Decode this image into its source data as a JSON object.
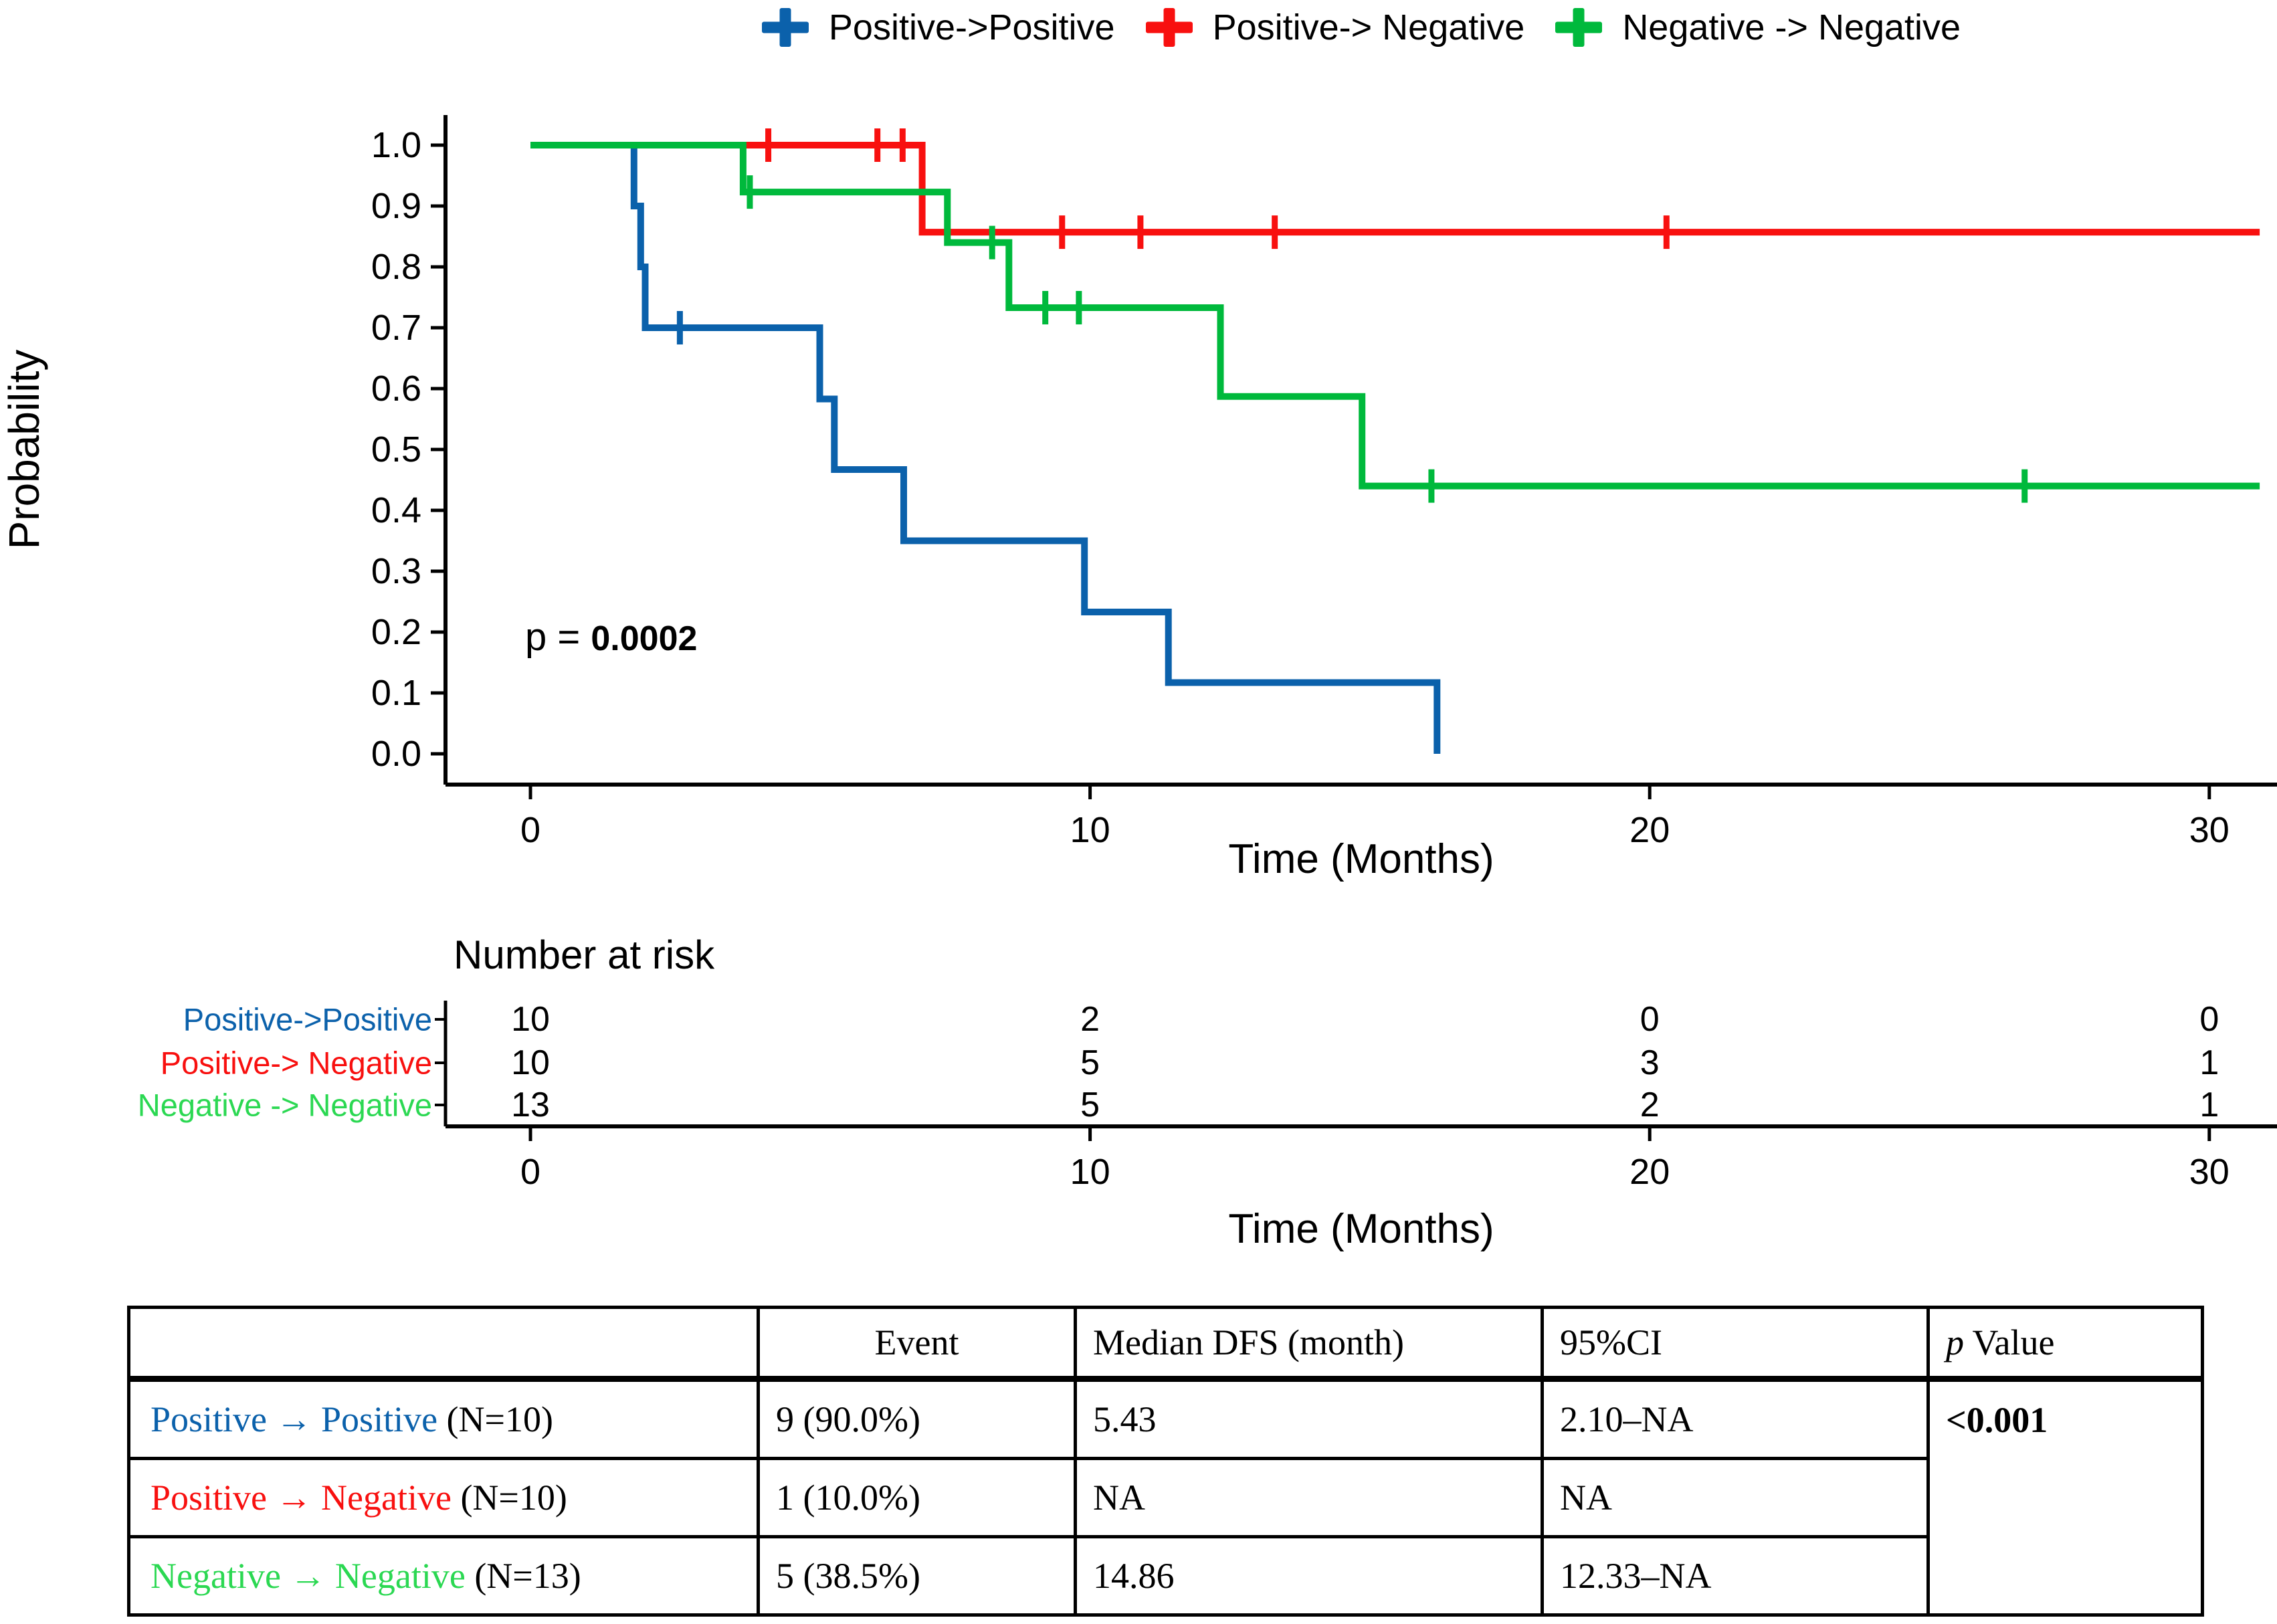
{
  "colors": {
    "blue": "#0B61AB",
    "red": "#F8100F",
    "green_line": "#00B93C",
    "green_text": "#2BD852",
    "axis": "#000000"
  },
  "legend": {
    "items": [
      {
        "label": "Positive->Positive",
        "color": "#0B61AB"
      },
      {
        "label": "Positive-> Negative",
        "color": "#F8100F"
      },
      {
        "label": "Negative -> Negative",
        "color": "#00B93C"
      }
    ]
  },
  "chart_data": {
    "type": "line",
    "subtype": "kaplan-meier-step",
    "title": "",
    "xlabel": "Time (Months)",
    "ylabel": "Probability",
    "xlim": [
      0,
      31.2
    ],
    "ylim": [
      0.0,
      1.0
    ],
    "x_ticks": [
      0,
      10,
      20,
      30
    ],
    "y_ticks": [
      0.0,
      0.1,
      0.2,
      0.3,
      0.4,
      0.5,
      0.6,
      0.7,
      0.8,
      0.9,
      1.0
    ],
    "grid": false,
    "legend_position": "top",
    "p_annotation": {
      "prefix": "p = ",
      "value": "0.0002"
    },
    "series": [
      {
        "name": "Positive-> Negative",
        "color": "#F8100F",
        "points": [
          [
            0,
            1.0
          ],
          [
            7.0,
            1.0
          ],
          [
            7.0,
            0.857
          ],
          [
            30.9,
            0.857
          ]
        ],
        "censors": [
          [
            4.25,
            1.0
          ],
          [
            6.2,
            1.0
          ],
          [
            6.65,
            1.0
          ],
          [
            9.5,
            0.857
          ],
          [
            10.9,
            0.857
          ],
          [
            13.3,
            0.857
          ],
          [
            20.3,
            0.857
          ]
        ]
      },
      {
        "name": "Positive->Positive",
        "color": "#0B61AB",
        "points": [
          [
            0,
            1.0
          ],
          [
            1.85,
            1.0
          ],
          [
            1.85,
            0.9
          ],
          [
            1.97,
            0.9
          ],
          [
            1.97,
            0.8
          ],
          [
            2.05,
            0.8
          ],
          [
            2.05,
            0.7
          ],
          [
            5.17,
            0.7
          ],
          [
            5.17,
            0.583
          ],
          [
            5.43,
            0.583
          ],
          [
            5.43,
            0.467
          ],
          [
            6.67,
            0.467
          ],
          [
            6.67,
            0.35
          ],
          [
            9.9,
            0.35
          ],
          [
            9.9,
            0.233
          ],
          [
            11.4,
            0.233
          ],
          [
            11.4,
            0.117
          ],
          [
            16.2,
            0.117
          ],
          [
            16.2,
            0.0
          ]
        ],
        "censors": [
          [
            2.67,
            0.7
          ]
        ]
      },
      {
        "name": "Negative -> Negative",
        "color": "#00B93C",
        "points": [
          [
            0,
            1.0
          ],
          [
            3.8,
            1.0
          ],
          [
            3.8,
            0.923
          ],
          [
            7.45,
            0.923
          ],
          [
            7.45,
            0.84
          ],
          [
            8.55,
            0.84
          ],
          [
            8.55,
            0.733
          ],
          [
            12.33,
            0.733
          ],
          [
            12.33,
            0.587
          ],
          [
            14.86,
            0.587
          ],
          [
            14.86,
            0.44
          ],
          [
            30.9,
            0.44
          ]
        ],
        "censors": [
          [
            3.92,
            0.923
          ],
          [
            8.25,
            0.84
          ],
          [
            9.2,
            0.733
          ],
          [
            9.8,
            0.733
          ],
          [
            16.1,
            0.44
          ],
          [
            26.7,
            0.44
          ]
        ]
      }
    ]
  },
  "risk_table": {
    "title": "Number at risk",
    "xlabel": "Time (Months)",
    "time_points": [
      0,
      10,
      20,
      30
    ],
    "rows": [
      {
        "label": "Positive->Positive",
        "color": "#0B61AB",
        "values": [
          "10",
          "2",
          "0",
          "0"
        ]
      },
      {
        "label": "Positive-> Negative",
        "color": "#F8100F",
        "values": [
          "10",
          "5",
          "3",
          "1"
        ]
      },
      {
        "label": "Negative -> Negative",
        "color": "#2BD852",
        "values": [
          "13",
          "5",
          "2",
          "1"
        ]
      }
    ]
  },
  "summary_table": {
    "headers": [
      "",
      "Event",
      "Median DFS (month)",
      "95%CI"
    ],
    "p_value_header": {
      "italic": "p",
      "rest": " Value"
    },
    "rows": [
      {
        "group": "Positive → Positive",
        "suffix": " (N=10)",
        "color": "#0B61AB",
        "event": "9 (90.0%)",
        "median": "5.43",
        "ci": "2.10–NA"
      },
      {
        "group": "Positive → Negative",
        "suffix": " (N=10)",
        "color": "#F8100F",
        "event": "1 (10.0%)",
        "median": "NA",
        "ci": "NA"
      },
      {
        "group": "Negative → Negative",
        "suffix": " (N=13)",
        "color": "#2BD852",
        "event": "5 (38.5%)",
        "median": "14.86",
        "ci": "12.33–NA"
      }
    ],
    "p_value": "<0.001"
  }
}
